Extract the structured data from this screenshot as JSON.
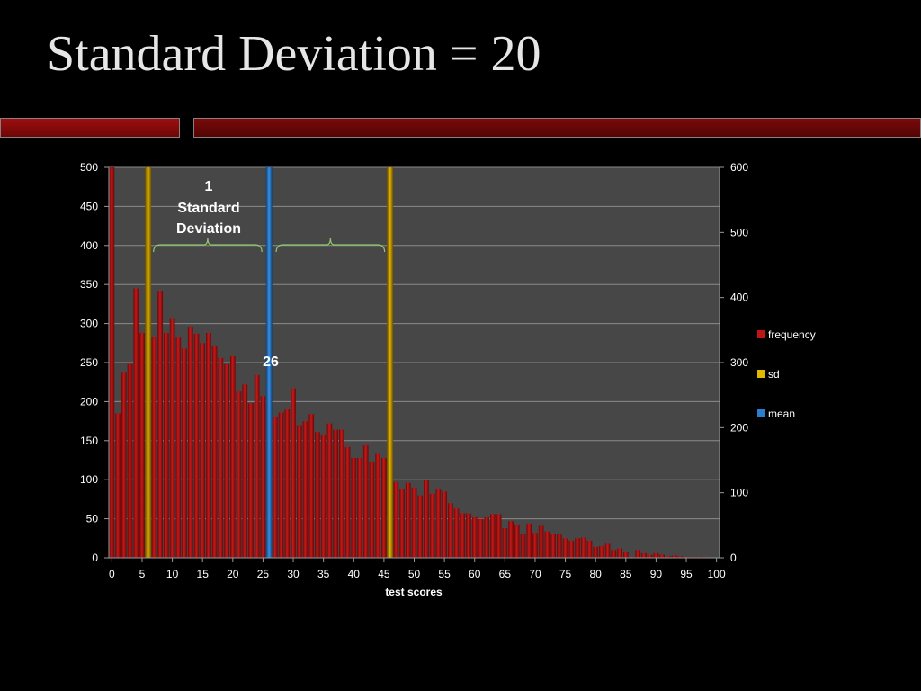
{
  "slide": {
    "title": "Standard Deviation = 20"
  },
  "colors": {
    "background": "#000000",
    "plot_area": "#464646",
    "frequency": "#a01010",
    "sd": "#c99800",
    "mean": "#1f6fc0",
    "brace": "#8fc96a",
    "rule": "#8b0a0a"
  },
  "chart_data": {
    "type": "bar",
    "xlabel": "test scores",
    "x_ticks": [
      "0",
      "5",
      "10",
      "15",
      "20",
      "25",
      "30",
      "35",
      "40",
      "45",
      "50",
      "55",
      "60",
      "65",
      "70",
      "75",
      "80",
      "85",
      "90",
      "95",
      "100"
    ],
    "y_ticks_left": [
      "0",
      "50",
      "100",
      "150",
      "200",
      "250",
      "300",
      "350",
      "400",
      "450",
      "500"
    ],
    "y_ticks_right": [
      "0",
      "100",
      "200",
      "300",
      "400",
      "500",
      "600"
    ],
    "ylim_left": [
      0,
      500
    ],
    "ylim_right": [
      0,
      600
    ],
    "xlim": [
      0,
      100
    ],
    "grid": true,
    "legend_position": "right",
    "legend": [
      {
        "name": "frequency",
        "color": "#c01515"
      },
      {
        "name": "sd",
        "color": "#e0b800"
      },
      {
        "name": "mean",
        "color": "#2a7fd0"
      }
    ],
    "series": [
      {
        "name": "frequency",
        "x": [
          0,
          1,
          2,
          3,
          4,
          5,
          6,
          7,
          8,
          9,
          10,
          11,
          12,
          13,
          14,
          15,
          16,
          17,
          18,
          19,
          20,
          21,
          22,
          23,
          24,
          25,
          26,
          27,
          28,
          29,
          30,
          31,
          32,
          33,
          34,
          35,
          36,
          37,
          38,
          39,
          40,
          41,
          42,
          43,
          44,
          45,
          46,
          47,
          48,
          49,
          50,
          51,
          52,
          53,
          54,
          55,
          56,
          57,
          58,
          59,
          60,
          61,
          62,
          63,
          64,
          65,
          66,
          67,
          68,
          69,
          70,
          71,
          72,
          73,
          74,
          75,
          76,
          77,
          78,
          79,
          80,
          81,
          82,
          83,
          84,
          85,
          86,
          87,
          88,
          89,
          90,
          91,
          92,
          93,
          94,
          95,
          96,
          97,
          98,
          99,
          100
        ],
        "values": [
          500,
          185,
          237,
          248,
          345,
          288,
          288,
          283,
          342,
          288,
          307,
          282,
          268,
          296,
          287,
          275,
          288,
          272,
          256,
          248,
          258,
          213,
          222,
          198,
          234,
          207,
          0,
          180,
          186,
          190,
          217,
          170,
          175,
          184,
          161,
          158,
          172,
          164,
          164,
          142,
          128,
          128,
          144,
          122,
          133,
          128,
          108,
          97,
          88,
          96,
          90,
          80,
          99,
          82,
          88,
          85,
          70,
          63,
          57,
          57,
          52,
          50,
          52,
          56,
          56,
          38,
          47,
          42,
          30,
          44,
          32,
          41,
          34,
          30,
          31,
          25,
          22,
          25,
          26,
          22,
          14,
          15,
          18,
          10,
          12,
          8,
          1,
          10,
          6,
          4,
          6,
          4,
          2,
          3,
          2,
          1,
          1,
          1,
          1,
          0,
          0
        ]
      },
      {
        "name": "sd",
        "x": [
          6,
          46
        ]
      },
      {
        "name": "mean",
        "x": [
          26
        ]
      }
    ],
    "annotations": {
      "sd_label_line1": "1",
      "sd_label_line2": "Standard",
      "sd_label_line3": "Deviation",
      "mean_label": "26"
    }
  }
}
